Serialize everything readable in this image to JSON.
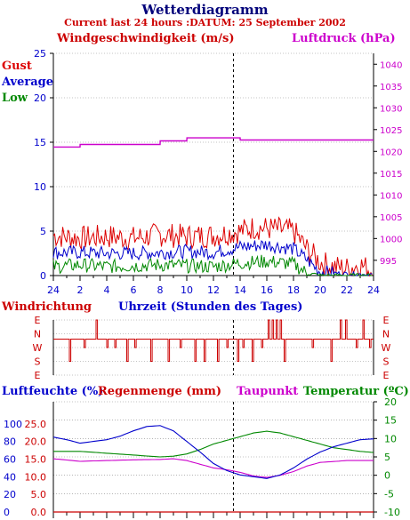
{
  "header": {
    "title": "Wetterdiagramm",
    "subtitle": "Current last 24 hours :DATUM: 25 September 2002"
  },
  "colors": {
    "gust": "#dd0000",
    "average": "#0000cc",
    "low": "#008800",
    "pressure": "#cc00cc",
    "direction": "#cc0000",
    "humidity": "#0000cc",
    "rain": "#cc0000",
    "dewpoint": "#cc00cc",
    "temperature": "#008800",
    "axis": "#000000",
    "grid": "#888888"
  },
  "chart_data": [
    {
      "type": "line",
      "title": "",
      "ylabel": "Windgeschwindigkeit (m/s)",
      "y2label": "Luftdruck (hPa)",
      "legend": [
        "Gust",
        "Average",
        "Low"
      ],
      "xlim": [
        0,
        24
      ],
      "ylim": [
        0,
        25
      ],
      "y2lim": [
        991.5,
        1042.5
      ],
      "y_ticks": [
        0,
        5,
        10,
        15,
        20,
        25
      ],
      "y2_ticks": [
        995,
        1000,
        1005,
        1010,
        1015,
        1020,
        1025,
        1030,
        1035,
        1040
      ],
      "x_tick_labels": [
        "24",
        "2",
        "4",
        "6",
        "8",
        "10",
        "12",
        "14",
        "16",
        "18",
        "20",
        "22",
        "24"
      ],
      "grid": true,
      "series": [
        {
          "name": "Gust",
          "x": [
            0,
            2,
            4,
            6,
            8,
            10,
            12,
            14,
            15,
            16,
            17,
            18,
            19,
            20,
            21,
            22,
            23,
            24
          ],
          "values": [
            4.5,
            4.2,
            4.4,
            4.2,
            4.6,
            4.4,
            4.5,
            5.0,
            5.4,
            5.3,
            5.2,
            5.0,
            3.0,
            1.5,
            1.0,
            0.8,
            1.2,
            0.5
          ]
        },
        {
          "name": "Average",
          "x": [
            0,
            2,
            4,
            6,
            8,
            10,
            12,
            14,
            16,
            18,
            19,
            20,
            22,
            24
          ],
          "values": [
            2.6,
            2.6,
            2.5,
            2.5,
            2.6,
            2.7,
            2.6,
            3.2,
            3.5,
            3.0,
            1.8,
            0.4,
            0.2,
            0.1
          ]
        },
        {
          "name": "Low",
          "x": [
            0,
            2,
            4,
            6,
            8,
            10,
            12,
            14,
            16,
            18,
            19,
            20,
            24
          ],
          "values": [
            1.0,
            1.2,
            1.0,
            1.1,
            1.2,
            1.1,
            1.0,
            1.4,
            1.6,
            1.3,
            0.3,
            0.0,
            0.0
          ]
        },
        {
          "name": "Luftdruck",
          "x": [
            0,
            2,
            2.01,
            8,
            8.01,
            10,
            10.01,
            14,
            14.01,
            24
          ],
          "values": [
            1021.0,
            1021.0,
            1021.6,
            1021.6,
            1022.4,
            1022.4,
            1023.1,
            1023.1,
            1022.6,
            1022.6
          ]
        }
      ]
    },
    {
      "type": "line",
      "title": "Windrichtung",
      "xlabel": "Uhrzeit (Stunden des Tages)",
      "y_tick_labels": [
        "E",
        "N",
        "W",
        "S",
        "E"
      ],
      "xlim": [
        0,
        24
      ],
      "series": [
        {
          "name": "Windrichtung",
          "baseline": "N",
          "dropouts": [
            {
              "x": 1.2,
              "to": "S"
            },
            {
              "x": 2.3,
              "to": "W"
            },
            {
              "x": 3.2,
              "to": "E"
            },
            {
              "x": 4.0,
              "to": "W"
            },
            {
              "x": 4.6,
              "to": "W"
            },
            {
              "x": 5.5,
              "to": "S"
            },
            {
              "x": 6.1,
              "to": "W"
            },
            {
              "x": 7.3,
              "to": "S"
            },
            {
              "x": 8.6,
              "to": "S"
            },
            {
              "x": 9.5,
              "to": "W"
            },
            {
              "x": 10.6,
              "to": "S"
            },
            {
              "x": 11.3,
              "to": "S"
            },
            {
              "x": 12.3,
              "to": "S"
            },
            {
              "x": 13.0,
              "to": "W"
            },
            {
              "x": 13.8,
              "to": "S"
            },
            {
              "x": 14.2,
              "to": "W"
            },
            {
              "x": 14.9,
              "to": "S"
            },
            {
              "x": 15.6,
              "to": "W"
            },
            {
              "x": 16.1,
              "to": "E"
            },
            {
              "x": 16.4,
              "to": "E"
            },
            {
              "x": 16.7,
              "to": "E"
            },
            {
              "x": 17.0,
              "to": "E"
            },
            {
              "x": 17.3,
              "to": "S"
            },
            {
              "x": 19.4,
              "to": "W"
            },
            {
              "x": 20.8,
              "to": "S"
            },
            {
              "x": 21.5,
              "to": "E"
            },
            {
              "x": 21.9,
              "to": "E"
            },
            {
              "x": 22.7,
              "to": "W"
            },
            {
              "x": 23.2,
              "to": "E"
            },
            {
              "x": 23.7,
              "to": "W"
            }
          ]
        }
      ]
    },
    {
      "type": "line",
      "title": "",
      "ylabel_left_1": "Luftfeuchte (%)",
      "ylabel_left_2": "Regenmenge (mm)",
      "ylabel_right_1": "Taupunkt",
      "ylabel_right_2": "Temperatur (ºC)",
      "xlim": [
        0,
        24
      ],
      "humidity_ticks": [
        0,
        20,
        40,
        60,
        80,
        100
      ],
      "rain_ticks": [
        "0.0",
        "5.0",
        "10.0",
        "15.0",
        "20.0",
        "25.0"
      ],
      "temperature_ticks": [
        -10,
        -5,
        0,
        5,
        10,
        15,
        20
      ],
      "humidity_lim": [
        0,
        125
      ],
      "temperature_lim": [
        -10,
        20
      ],
      "grid": true,
      "series": [
        {
          "name": "Luftfeuchte",
          "axis": "humidity",
          "x": [
            0,
            1,
            2,
            3,
            4,
            5,
            6,
            7,
            8,
            9,
            10,
            11,
            12,
            13,
            14,
            15,
            16,
            17,
            18,
            19,
            20,
            21,
            22,
            23,
            24
          ],
          "values": [
            85,
            82,
            78,
            80,
            82,
            86,
            92,
            97,
            98,
            92,
            80,
            68,
            55,
            47,
            42,
            40,
            38,
            42,
            50,
            60,
            68,
            74,
            78,
            82,
            83
          ]
        },
        {
          "name": "Regenmenge",
          "axis": "rain",
          "x": [
            0,
            24
          ],
          "values": [
            0,
            0
          ]
        },
        {
          "name": "Taupunkt",
          "axis": "temperature",
          "x": [
            0,
            2,
            4,
            6,
            8,
            9,
            10,
            11,
            12,
            13,
            14,
            15,
            16,
            17,
            18,
            19,
            20,
            22,
            24
          ],
          "values": [
            4.5,
            3.8,
            4.0,
            4.2,
            4.3,
            4.5,
            4.0,
            3.0,
            2.0,
            1.5,
            0.8,
            -0.2,
            -0.6,
            0.0,
            1.0,
            2.5,
            3.5,
            4.0,
            4.0
          ]
        },
        {
          "name": "Temperatur",
          "axis": "temperature",
          "x": [
            0,
            2,
            4,
            6,
            8,
            9,
            10,
            11,
            12,
            13,
            14,
            15,
            16,
            17,
            18,
            19,
            20,
            21,
            22,
            23,
            24
          ],
          "values": [
            6.5,
            6.5,
            6.0,
            5.5,
            5.0,
            5.2,
            5.8,
            7.0,
            8.5,
            9.5,
            10.5,
            11.5,
            12.0,
            11.5,
            10.5,
            9.5,
            8.5,
            7.5,
            7.0,
            6.5,
            6.2
          ]
        }
      ]
    }
  ]
}
